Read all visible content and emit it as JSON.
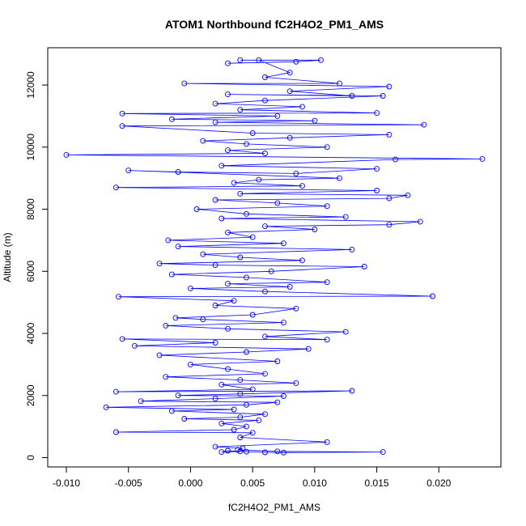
{
  "chart_data": {
    "type": "line",
    "title": "ATOM1 Northbound fC2H4O2_PM1_AMS",
    "xlabel": "fC2H4O2_PM1_AMS",
    "ylabel": "Altitude (m)",
    "xlim": [
      -0.0115,
      0.025
    ],
    "ylim": [
      -300,
      13200
    ],
    "x_ticks": [
      -0.01,
      -0.005,
      0.0,
      0.005,
      0.01,
      0.015,
      0.02
    ],
    "x_tick_labels": [
      "-0.010",
      "-0.005",
      "0.000",
      "0.005",
      "0.010",
      "0.015",
      "0.020"
    ],
    "y_ticks": [
      0,
      2000,
      4000,
      6000,
      8000,
      10000,
      12000
    ],
    "y_tick_labels": [
      "0",
      "2000",
      "4000",
      "6000",
      "8000",
      "10000",
      "12000"
    ],
    "grid": false,
    "series": [
      {
        "color": "#0000ff",
        "marker": "open-circle",
        "points": [
          [
            0.004,
            200
          ],
          [
            0.0025,
            180
          ],
          [
            0.003,
            220
          ],
          [
            0.0045,
            190
          ],
          [
            0.006,
            170
          ],
          [
            0.0075,
            160
          ],
          [
            0.0155,
            180
          ],
          [
            0.007,
            200
          ],
          [
            0.0038,
            250
          ],
          [
            0.0042,
            300
          ],
          [
            0.002,
            350
          ],
          [
            0.011,
            500
          ],
          [
            0.004,
            650
          ],
          [
            0.005,
            800
          ],
          [
            -0.006,
            820
          ],
          [
            0.0035,
            900
          ],
          [
            0.0045,
            1000
          ],
          [
            0.0025,
            1100
          ],
          [
            0.0055,
            1200
          ],
          [
            -0.0005,
            1250
          ],
          [
            0.004,
            1300
          ],
          [
            0.006,
            1400
          ],
          [
            -0.0015,
            1500
          ],
          [
            0.0035,
            1550
          ],
          [
            -0.0068,
            1620
          ],
          [
            0.0045,
            1700
          ],
          [
            0.007,
            1780
          ],
          [
            -0.004,
            1820
          ],
          [
            0.002,
            1900
          ],
          [
            0.0075,
            1980
          ],
          [
            -0.001,
            2000
          ],
          [
            0.004,
            2050
          ],
          [
            0.013,
            2150
          ],
          [
            -0.006,
            2120
          ],
          [
            0.005,
            2200
          ],
          [
            0.0025,
            2350
          ],
          [
            0.0085,
            2400
          ],
          [
            0.004,
            2500
          ],
          [
            -0.002,
            2600
          ],
          [
            0.006,
            2700
          ],
          [
            0.003,
            2850
          ],
          [
            0.0,
            3000
          ],
          [
            0.007,
            3100
          ],
          [
            -0.0025,
            3300
          ],
          [
            0.0045,
            3400
          ],
          [
            0.0095,
            3500
          ],
          [
            -0.0045,
            3600
          ],
          [
            0.002,
            3700
          ],
          [
            -0.0055,
            3820
          ],
          [
            0.011,
            3800
          ],
          [
            0.006,
            3900
          ],
          [
            0.0125,
            4050
          ],
          [
            0.003,
            4150
          ],
          [
            -0.002,
            4250
          ],
          [
            0.0075,
            4350
          ],
          [
            0.001,
            4450
          ],
          [
            -0.0012,
            4500
          ],
          [
            0.005,
            4600
          ],
          [
            0.0085,
            4800
          ],
          [
            0.002,
            4900
          ],
          [
            0.0035,
            5050
          ],
          [
            -0.0058,
            5180
          ],
          [
            0.0195,
            5200
          ],
          [
            0.006,
            5350
          ],
          [
            0.0,
            5450
          ],
          [
            0.008,
            5500
          ],
          [
            0.003,
            5600
          ],
          [
            0.011,
            5650
          ],
          [
            0.0045,
            5800
          ],
          [
            -0.0015,
            5900
          ],
          [
            0.0065,
            6000
          ],
          [
            0.014,
            6150
          ],
          [
            0.002,
            6200
          ],
          [
            -0.0025,
            6250
          ],
          [
            0.009,
            6350
          ],
          [
            0.004,
            6450
          ],
          [
            0.001,
            6550
          ],
          [
            0.013,
            6700
          ],
          [
            -0.001,
            6800
          ],
          [
            0.0075,
            6900
          ],
          [
            -0.0018,
            7000
          ],
          [
            0.005,
            7100
          ],
          [
            0.003,
            7250
          ],
          [
            0.01,
            7350
          ],
          [
            0.006,
            7450
          ],
          [
            0.016,
            7500
          ],
          [
            0.0185,
            7600
          ],
          [
            0.0025,
            7700
          ],
          [
            0.0125,
            7750
          ],
          [
            0.0045,
            7850
          ],
          [
            0.0005,
            8000
          ],
          [
            0.011,
            8100
          ],
          [
            0.007,
            8200
          ],
          [
            0.002,
            8300
          ],
          [
            0.016,
            8350
          ],
          [
            0.0175,
            8450
          ],
          [
            0.004,
            8500
          ],
          [
            0.015,
            8600
          ],
          [
            -0.006,
            8700
          ],
          [
            0.009,
            8750
          ],
          [
            0.0035,
            8850
          ],
          [
            0.0055,
            8950
          ],
          [
            0.012,
            9000
          ],
          [
            -0.005,
            9250
          ],
          [
            -0.001,
            9200
          ],
          [
            0.0085,
            9150
          ],
          [
            0.015,
            9300
          ],
          [
            0.0025,
            9400
          ],
          [
            0.0165,
            9600
          ],
          [
            0.0235,
            9620
          ],
          [
            -0.01,
            9750
          ],
          [
            0.006,
            9800
          ],
          [
            0.003,
            9900
          ],
          [
            0.011,
            10000
          ],
          [
            0.0045,
            10100
          ],
          [
            0.001,
            10200
          ],
          [
            0.008,
            10300
          ],
          [
            0.016,
            10400
          ],
          [
            0.005,
            10450
          ],
          [
            -0.0055,
            10680
          ],
          [
            0.0188,
            10720
          ],
          [
            0.002,
            10800
          ],
          [
            0.01,
            10850
          ],
          [
            -0.0015,
            10900
          ],
          [
            0.007,
            11000
          ],
          [
            -0.0055,
            11080
          ],
          [
            0.015,
            11100
          ],
          [
            0.004,
            11200
          ],
          [
            0.009,
            11300
          ],
          [
            0.002,
            11400
          ],
          [
            0.006,
            11500
          ],
          [
            0.0155,
            11650
          ],
          [
            0.003,
            11700
          ],
          [
            0.013,
            11650
          ],
          [
            0.008,
            11800
          ],
          [
            0.016,
            11950
          ],
          [
            -0.0005,
            12050
          ],
          [
            0.012,
            12050
          ],
          [
            0.006,
            12250
          ],
          [
            0.008,
            12400
          ],
          [
            0.0055,
            12800
          ],
          [
            0.004,
            12800
          ],
          [
            0.0105,
            12800
          ],
          [
            0.0085,
            12750
          ],
          [
            0.003,
            12700
          ]
        ]
      }
    ]
  }
}
